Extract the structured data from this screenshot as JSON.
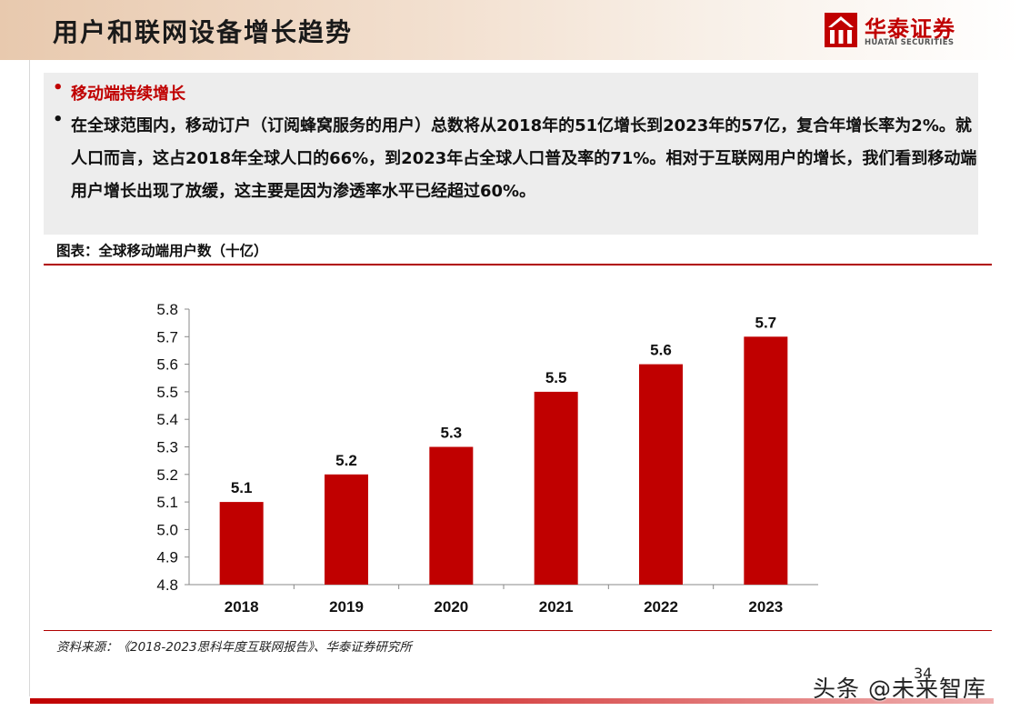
{
  "header": {
    "title": "用户和联网设备增长趋势",
    "logo_cn": "华泰证券",
    "logo_en": "HUATAI SECURITIES"
  },
  "bullets": [
    {
      "text": "移动端持续增长"
    },
    {
      "text": "在全球范围内，移动订户（订阅蜂窝服务的用户）总数将从2018年的51亿增长到2023年的57亿，复合年增长率为2%。就人口而言，这占2018年全球人口的66%，到2023年占全球人口普及率的71%。相对于互联网用户的增长，我们看到移动端用户增长出现了放缓，这主要是因为渗透率水平已经超过60%。"
    }
  ],
  "figure_title": "图表：全球移动端用户数（十亿）",
  "source": "资料来源：《2018-2023思科年度互联网报告》、华泰证券研究所",
  "page_number": "34",
  "watermark": "头条 @未来智库",
  "colors": {
    "bar": "#c00000",
    "accent": "#c00000"
  },
  "chart_data": {
    "type": "bar",
    "title": "",
    "xlabel": "",
    "ylabel": "",
    "categories": [
      "2018",
      "2019",
      "2020",
      "2021",
      "2022",
      "2023"
    ],
    "values": [
      5.1,
      5.2,
      5.3,
      5.5,
      5.6,
      5.7
    ],
    "data_labels": [
      "5.1",
      "5.2",
      "5.3",
      "5.5",
      "5.6",
      "5.7"
    ],
    "ylim": [
      4.8,
      5.8
    ],
    "yticks": [
      "4.8",
      "4.9",
      "5.0",
      "5.1",
      "5.2",
      "5.3",
      "5.4",
      "5.5",
      "5.6",
      "5.7",
      "5.8"
    ],
    "grid": false,
    "legend": "none"
  }
}
